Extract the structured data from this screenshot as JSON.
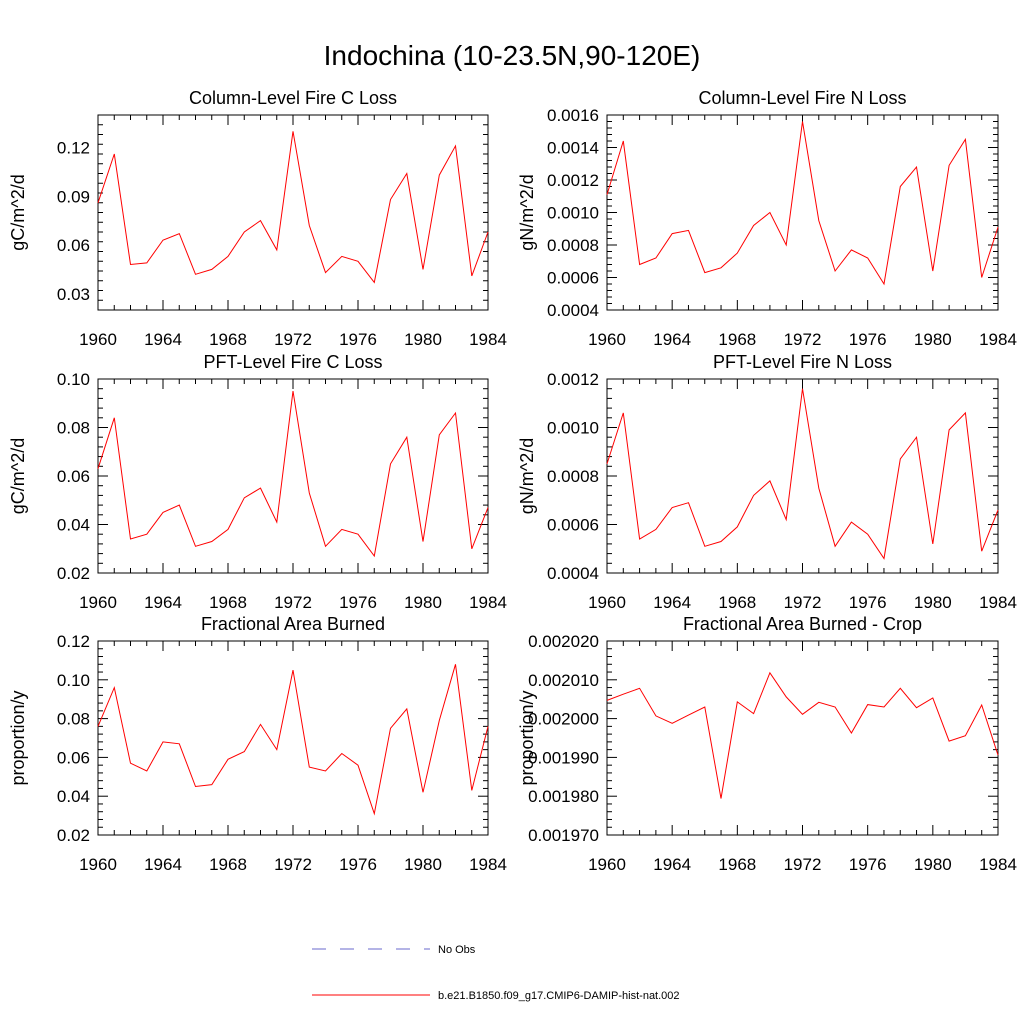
{
  "figure": {
    "title": "Indochina (10-23.5N,90-120E)"
  },
  "chart_data": [
    {
      "type": "line",
      "title": "Column-Level Fire C Loss",
      "ylabel": "gC/m^2/d",
      "xlim": [
        1960,
        1984
      ],
      "ylim": [
        0.02,
        0.14
      ],
      "xticks": [
        1960,
        1964,
        1968,
        1972,
        1976,
        1980,
        1984
      ],
      "yticks": [
        0.03,
        0.06,
        0.09,
        0.12
      ],
      "ytick_labels": [
        "0.03",
        "0.06",
        "0.09",
        "0.12"
      ],
      "x": [
        1960,
        1961,
        1962,
        1963,
        1964,
        1965,
        1966,
        1967,
        1968,
        1969,
        1970,
        1971,
        1972,
        1973,
        1974,
        1975,
        1976,
        1977,
        1978,
        1979,
        1980,
        1981,
        1982,
        1983,
        1984
      ],
      "series": [
        {
          "name": "b.e21.B1850.f09_g17.CMIP6-DAMIP-hist-nat.002",
          "color": "#ff0000",
          "values": [
            0.086,
            0.116,
            0.048,
            0.049,
            0.063,
            0.067,
            0.042,
            0.045,
            0.053,
            0.068,
            0.075,
            0.057,
            0.13,
            0.072,
            0.043,
            0.053,
            0.05,
            0.037,
            0.088,
            0.104,
            0.045,
            0.103,
            0.121,
            0.041,
            0.068
          ]
        }
      ]
    },
    {
      "type": "line",
      "title": "Column-Level Fire N Loss",
      "ylabel": "gN/m^2/d",
      "xlim": [
        1960,
        1984
      ],
      "ylim": [
        0.0004,
        0.0016
      ],
      "xticks": [
        1960,
        1964,
        1968,
        1972,
        1976,
        1980,
        1984
      ],
      "yticks": [
        0.0004,
        0.0006,
        0.0008,
        0.001,
        0.0012,
        0.0014,
        0.0016
      ],
      "ytick_labels": [
        "0.0004",
        "0.0006",
        "0.0008",
        "0.0010",
        "0.0012",
        "0.0014",
        "0.0016"
      ],
      "x": [
        1960,
        1961,
        1962,
        1963,
        1964,
        1965,
        1966,
        1967,
        1968,
        1969,
        1970,
        1971,
        1972,
        1973,
        1974,
        1975,
        1976,
        1977,
        1978,
        1979,
        1980,
        1981,
        1982,
        1983,
        1984
      ],
      "series": [
        {
          "name": "b.e21.B1850.f09_g17.CMIP6-DAMIP-hist-nat.002",
          "color": "#ff0000",
          "values": [
            0.00111,
            0.00144,
            0.00068,
            0.00072,
            0.00087,
            0.00089,
            0.00063,
            0.00066,
            0.00075,
            0.00092,
            0.001,
            0.0008,
            0.00156,
            0.00095,
            0.00064,
            0.00077,
            0.00072,
            0.00056,
            0.00116,
            0.00128,
            0.00064,
            0.00129,
            0.00145,
            0.0006,
            0.00091
          ]
        }
      ]
    },
    {
      "type": "line",
      "title": "PFT-Level Fire C Loss",
      "ylabel": "gC/m^2/d",
      "xlim": [
        1960,
        1984
      ],
      "ylim": [
        0.02,
        0.1
      ],
      "xticks": [
        1960,
        1964,
        1968,
        1972,
        1976,
        1980,
        1984
      ],
      "yticks": [
        0.02,
        0.04,
        0.06,
        0.08,
        0.1
      ],
      "ytick_labels": [
        "0.02",
        "0.04",
        "0.06",
        "0.08",
        "0.10"
      ],
      "x": [
        1960,
        1961,
        1962,
        1963,
        1964,
        1965,
        1966,
        1967,
        1968,
        1969,
        1970,
        1971,
        1972,
        1973,
        1974,
        1975,
        1976,
        1977,
        1978,
        1979,
        1980,
        1981,
        1982,
        1983,
        1984
      ],
      "series": [
        {
          "name": "b.e21.B1850.f09_g17.CMIP6-DAMIP-hist-nat.002",
          "color": "#ff0000",
          "values": [
            0.063,
            0.084,
            0.034,
            0.036,
            0.045,
            0.048,
            0.031,
            0.033,
            0.038,
            0.051,
            0.055,
            0.041,
            0.095,
            0.053,
            0.031,
            0.038,
            0.036,
            0.027,
            0.065,
            0.076,
            0.033,
            0.077,
            0.086,
            0.03,
            0.047
          ]
        }
      ]
    },
    {
      "type": "line",
      "title": "PFT-Level Fire N Loss",
      "ylabel": "gN/m^2/d",
      "xlim": [
        1960,
        1984
      ],
      "ylim": [
        0.0004,
        0.0012
      ],
      "xticks": [
        1960,
        1964,
        1968,
        1972,
        1976,
        1980,
        1984
      ],
      "yticks": [
        0.0004,
        0.0006,
        0.0008,
        0.001,
        0.0012
      ],
      "ytick_labels": [
        "0.0004",
        "0.0006",
        "0.0008",
        "0.0010",
        "0.0012"
      ],
      "x": [
        1960,
        1961,
        1962,
        1963,
        1964,
        1965,
        1966,
        1967,
        1968,
        1969,
        1970,
        1971,
        1972,
        1973,
        1974,
        1975,
        1976,
        1977,
        1978,
        1979,
        1980,
        1981,
        1982,
        1983,
        1984
      ],
      "series": [
        {
          "name": "b.e21.B1850.f09_g17.CMIP6-DAMIP-hist-nat.002",
          "color": "#ff0000",
          "values": [
            0.00085,
            0.00106,
            0.00054,
            0.00058,
            0.00067,
            0.00069,
            0.00051,
            0.00053,
            0.00059,
            0.00072,
            0.00078,
            0.00062,
            0.00116,
            0.00075,
            0.00051,
            0.00061,
            0.00056,
            0.00046,
            0.00087,
            0.00096,
            0.00052,
            0.00099,
            0.00106,
            0.00049,
            0.00066
          ]
        }
      ]
    },
    {
      "type": "line",
      "title": "Fractional Area Burned",
      "ylabel": "proportion/y",
      "xlim": [
        1960,
        1984
      ],
      "ylim": [
        0.02,
        0.12
      ],
      "xticks": [
        1960,
        1964,
        1968,
        1972,
        1976,
        1980,
        1984
      ],
      "yticks": [
        0.02,
        0.04,
        0.06,
        0.08,
        0.1,
        0.12
      ],
      "ytick_labels": [
        "0.02",
        "0.04",
        "0.06",
        "0.08",
        "0.10",
        "0.12"
      ],
      "x": [
        1960,
        1961,
        1962,
        1963,
        1964,
        1965,
        1966,
        1967,
        1968,
        1969,
        1970,
        1971,
        1972,
        1973,
        1974,
        1975,
        1976,
        1977,
        1978,
        1979,
        1980,
        1981,
        1982,
        1983,
        1984
      ],
      "series": [
        {
          "name": "b.e21.B1850.f09_g17.CMIP6-DAMIP-hist-nat.002",
          "color": "#ff0000",
          "values": [
            0.076,
            0.096,
            0.057,
            0.053,
            0.068,
            0.067,
            0.045,
            0.046,
            0.059,
            0.063,
            0.077,
            0.064,
            0.105,
            0.055,
            0.053,
            0.062,
            0.056,
            0.031,
            0.075,
            0.085,
            0.042,
            0.079,
            0.108,
            0.043,
            0.076
          ]
        }
      ]
    },
    {
      "type": "line",
      "title": "Fractional Area Burned - Crop",
      "ylabel": "proportion/y",
      "xlim": [
        1960,
        1984
      ],
      "ylim": [
        0.00197,
        0.00202
      ],
      "xticks": [
        1960,
        1964,
        1968,
        1972,
        1976,
        1980,
        1984
      ],
      "yticks": [
        0.00197,
        0.00198,
        0.00199,
        0.002,
        0.00201,
        0.00202
      ],
      "ytick_labels": [
        "0.001970",
        "0.001980",
        "0.001990",
        "0.002000",
        "0.002010",
        "0.002020"
      ],
      "x": [
        1960,
        1961,
        1962,
        1963,
        1964,
        1965,
        1966,
        1967,
        1968,
        1969,
        1970,
        1971,
        1972,
        1973,
        1974,
        1975,
        1976,
        1977,
        1978,
        1979,
        1980,
        1981,
        1982,
        1983,
        1984
      ],
      "series": [
        {
          "name": "b.e21.B1850.f09_g17.CMIP6-DAMIP-hist-nat.002",
          "color": "#ff0000",
          "values": [
            0.0020047,
            0.0020063,
            0.0020078,
            0.0020007,
            0.0019988,
            0.0020009,
            0.002003,
            0.0019794,
            0.0020043,
            0.0020013,
            0.0020118,
            0.0020056,
            0.0020011,
            0.0020042,
            0.002003,
            0.0019963,
            0.0020036,
            0.002003,
            0.0020078,
            0.0020028,
            0.0020053,
            0.0019942,
            0.0019956,
            0.0020035,
            0.0019906
          ]
        }
      ]
    }
  ],
  "legend": {
    "placement": "bottom-center",
    "items": [
      {
        "label": "No Obs",
        "color": "#6a6acd",
        "style": "dashed"
      },
      {
        "label": "b.e21.B1850.f09_g17.CMIP6-DAMIP-hist-nat.002",
        "color": "#ff0000",
        "style": "solid"
      }
    ]
  }
}
